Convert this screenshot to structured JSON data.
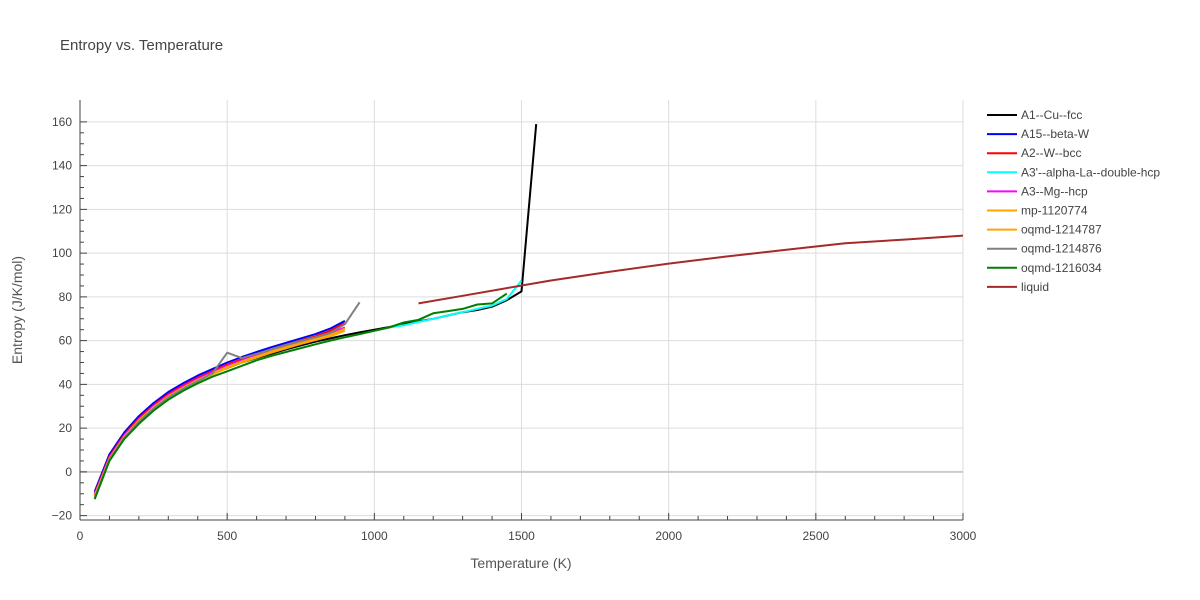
{
  "chart_data": {
    "type": "line",
    "title": "Entropy vs. Temperature",
    "xlabel": "Temperature (K)",
    "ylabel": "Entropy (J/K/mol)",
    "xlim": [
      0,
      3000
    ],
    "ylim": [
      -22,
      170
    ],
    "xticks": [
      0,
      500,
      1000,
      1500,
      2000,
      2500,
      3000
    ],
    "yticks": [
      -20,
      0,
      20,
      40,
      60,
      80,
      100,
      120,
      140,
      160
    ],
    "grid": true,
    "legend_position": "right",
    "series": [
      {
        "name": "A1--Cu--fcc",
        "color": "#000000",
        "x": [
          50,
          100,
          150,
          200,
          250,
          300,
          350,
          400,
          450,
          500,
          550,
          600,
          650,
          700,
          750,
          800,
          850,
          900,
          950,
          1000,
          1050,
          1100,
          1150,
          1200,
          1250,
          1300,
          1350,
          1400,
          1450,
          1500,
          1550
        ],
        "y": [
          -11,
          6,
          16,
          23,
          29,
          34,
          38,
          42,
          45,
          47.5,
          50,
          52,
          54,
          56,
          57.8,
          59.5,
          61,
          62.5,
          63.8,
          65,
          66.2,
          67.5,
          68.8,
          70,
          71.5,
          73,
          74,
          75.5,
          78.5,
          82.5,
          159
        ]
      },
      {
        "name": "A15--beta-W",
        "color": "#0000ff",
        "x": [
          50,
          100,
          150,
          200,
          250,
          300,
          350,
          400,
          450,
          500,
          550,
          600,
          650,
          700,
          750,
          800,
          850,
          900
        ],
        "y": [
          -9,
          8,
          18,
          25.5,
          31.5,
          36.5,
          40.5,
          44,
          47,
          50,
          52.5,
          54.8,
          57,
          59,
          61,
          63,
          65.5,
          69
        ]
      },
      {
        "name": "A2--W--bcc",
        "color": "#ff0000",
        "x": [
          50,
          100,
          150,
          200,
          250,
          300,
          350,
          400,
          450,
          500,
          550,
          600,
          650,
          700,
          750,
          800,
          850,
          900
        ],
        "y": [
          -10,
          7,
          17,
          24.5,
          30.5,
          35.5,
          39.5,
          43,
          46,
          49,
          51.5,
          53.8,
          56,
          58,
          60,
          62,
          64.5,
          68
        ]
      },
      {
        "name": "A3'--alpha-La--double-hcp",
        "color": "#00ffff",
        "x": [
          1050,
          1100,
          1150,
          1200,
          1250,
          1300,
          1350,
          1400,
          1450,
          1500
        ],
        "y": [
          66,
          67,
          68.5,
          70,
          71.5,
          73,
          74.5,
          76,
          79,
          87.5
        ]
      },
      {
        "name": "A3--Mg--hcp",
        "color": "#ff00ff",
        "x": [
          50,
          100,
          150,
          200,
          250,
          300,
          350,
          400,
          450,
          500,
          550,
          600,
          650,
          700,
          750,
          800,
          850,
          900
        ],
        "y": [
          -10.5,
          6.5,
          16.5,
          24,
          30,
          35,
          39,
          42.5,
          45.5,
          48.5,
          51,
          53.3,
          55.5,
          57.5,
          59.5,
          61.3,
          63.5,
          66
        ]
      },
      {
        "name": "mp-1120774",
        "color": "#ffa500",
        "x": [
          50,
          100,
          150,
          200,
          250,
          300,
          350,
          400,
          450,
          500,
          550,
          600,
          650,
          700,
          750,
          800,
          850,
          900
        ],
        "y": [
          -11,
          6,
          16,
          23.5,
          29.5,
          34.5,
          38.5,
          42,
          45,
          48,
          50.5,
          52.8,
          55,
          57,
          59,
          60.8,
          62.5,
          65.5
        ]
      },
      {
        "name": "oqmd-1214787",
        "color": "#ffa500",
        "x": [
          50,
          100,
          150,
          200,
          250,
          300,
          350,
          400,
          450,
          500,
          550,
          600,
          650,
          700,
          750,
          800,
          850,
          900
        ],
        "y": [
          -11.5,
          5.5,
          15.5,
          23,
          29,
          34,
          38,
          41.5,
          44.5,
          47.5,
          50,
          52.3,
          54.5,
          56.5,
          58.5,
          60.3,
          62,
          64.5
        ]
      },
      {
        "name": "oqmd-1214876",
        "color": "#808080",
        "x": [
          50,
          100,
          150,
          200,
          250,
          300,
          350,
          400,
          450,
          500,
          550,
          600,
          650,
          700,
          750,
          800,
          850,
          900,
          950
        ],
        "y": [
          -12,
          5.5,
          15.5,
          23,
          29,
          34,
          38,
          41.5,
          45,
          54.5,
          52,
          54,
          56,
          58,
          59.8,
          61.5,
          63.5,
          67.5,
          77.5
        ]
      },
      {
        "name": "oqmd-1216034",
        "color": "#008000",
        "x": [
          50,
          100,
          150,
          200,
          250,
          300,
          350,
          400,
          450,
          500,
          550,
          600,
          650,
          700,
          750,
          800,
          850,
          900,
          950,
          1000,
          1050,
          1100,
          1150,
          1200,
          1250,
          1300,
          1350,
          1400,
          1450
        ],
        "y": [
          -12.5,
          5,
          15,
          22,
          28,
          33,
          37,
          40.5,
          43.5,
          46,
          48.5,
          51,
          53,
          54.8,
          56.6,
          58.3,
          60,
          61.5,
          63,
          64.5,
          66,
          68.3,
          69.5,
          72.5,
          73.5,
          74.5,
          76.5,
          77,
          81.5
        ]
      },
      {
        "name": "liquid",
        "color": "#a52a2a",
        "x": [
          1150,
          1300,
          1450,
          1600,
          1800,
          2000,
          2200,
          2400,
          2600,
          2800,
          3000
        ],
        "y": [
          77,
          80.5,
          84,
          87.5,
          91.5,
          95.2,
          98.5,
          101.5,
          104.5,
          106.2,
          108
        ]
      }
    ]
  }
}
